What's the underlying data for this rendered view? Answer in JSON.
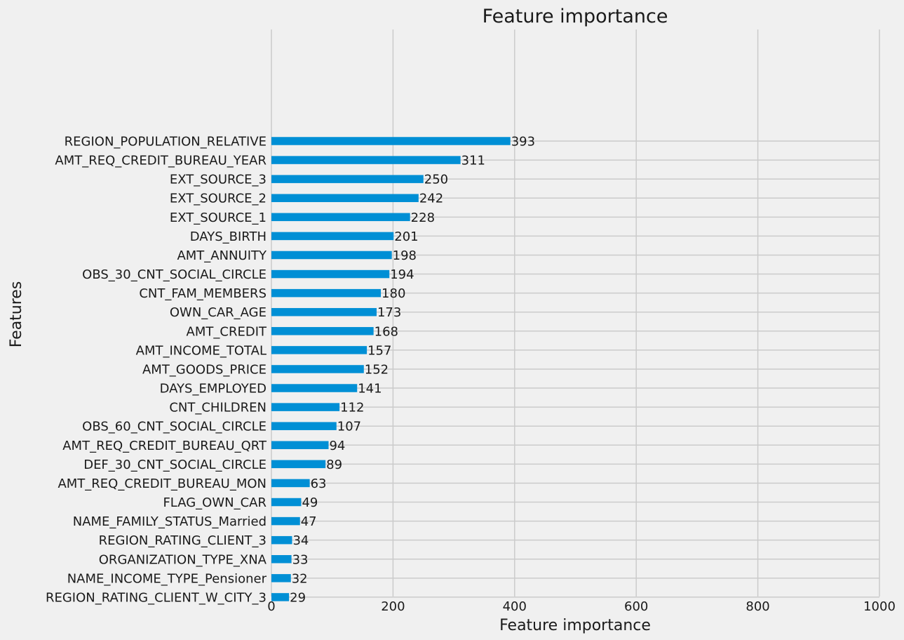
{
  "chart_data": {
    "type": "bar",
    "orientation": "horizontal",
    "title": "Feature importance",
    "xlabel": "Feature importance",
    "ylabel": "Features",
    "xlim": [
      0,
      1000
    ],
    "xticks": [
      0,
      200,
      400,
      600,
      800,
      1000
    ],
    "grid": true,
    "bar_color": "#008fd5",
    "categories": [
      "REGION_POPULATION_RELATIVE",
      "AMT_REQ_CREDIT_BUREAU_YEAR",
      "EXT_SOURCE_3",
      "EXT_SOURCE_2",
      "EXT_SOURCE_1",
      "DAYS_BIRTH",
      "AMT_ANNUITY",
      "OBS_30_CNT_SOCIAL_CIRCLE",
      "CNT_FAM_MEMBERS",
      "OWN_CAR_AGE",
      "AMT_CREDIT",
      "AMT_INCOME_TOTAL",
      "AMT_GOODS_PRICE",
      "DAYS_EMPLOYED",
      "CNT_CHILDREN",
      "OBS_60_CNT_SOCIAL_CIRCLE",
      "AMT_REQ_CREDIT_BUREAU_QRT",
      "DEF_30_CNT_SOCIAL_CIRCLE",
      "AMT_REQ_CREDIT_BUREAU_MON",
      "FLAG_OWN_CAR",
      "NAME_FAMILY_STATUS_Married",
      "REGION_RATING_CLIENT_3",
      "ORGANIZATION_TYPE_XNA",
      "NAME_INCOME_TYPE_Pensioner",
      "REGION_RATING_CLIENT_W_CITY_3"
    ],
    "values": [
      393,
      311,
      250,
      242,
      228,
      201,
      198,
      194,
      180,
      173,
      168,
      157,
      152,
      141,
      112,
      107,
      94,
      89,
      63,
      49,
      47,
      34,
      33,
      32,
      29
    ]
  }
}
